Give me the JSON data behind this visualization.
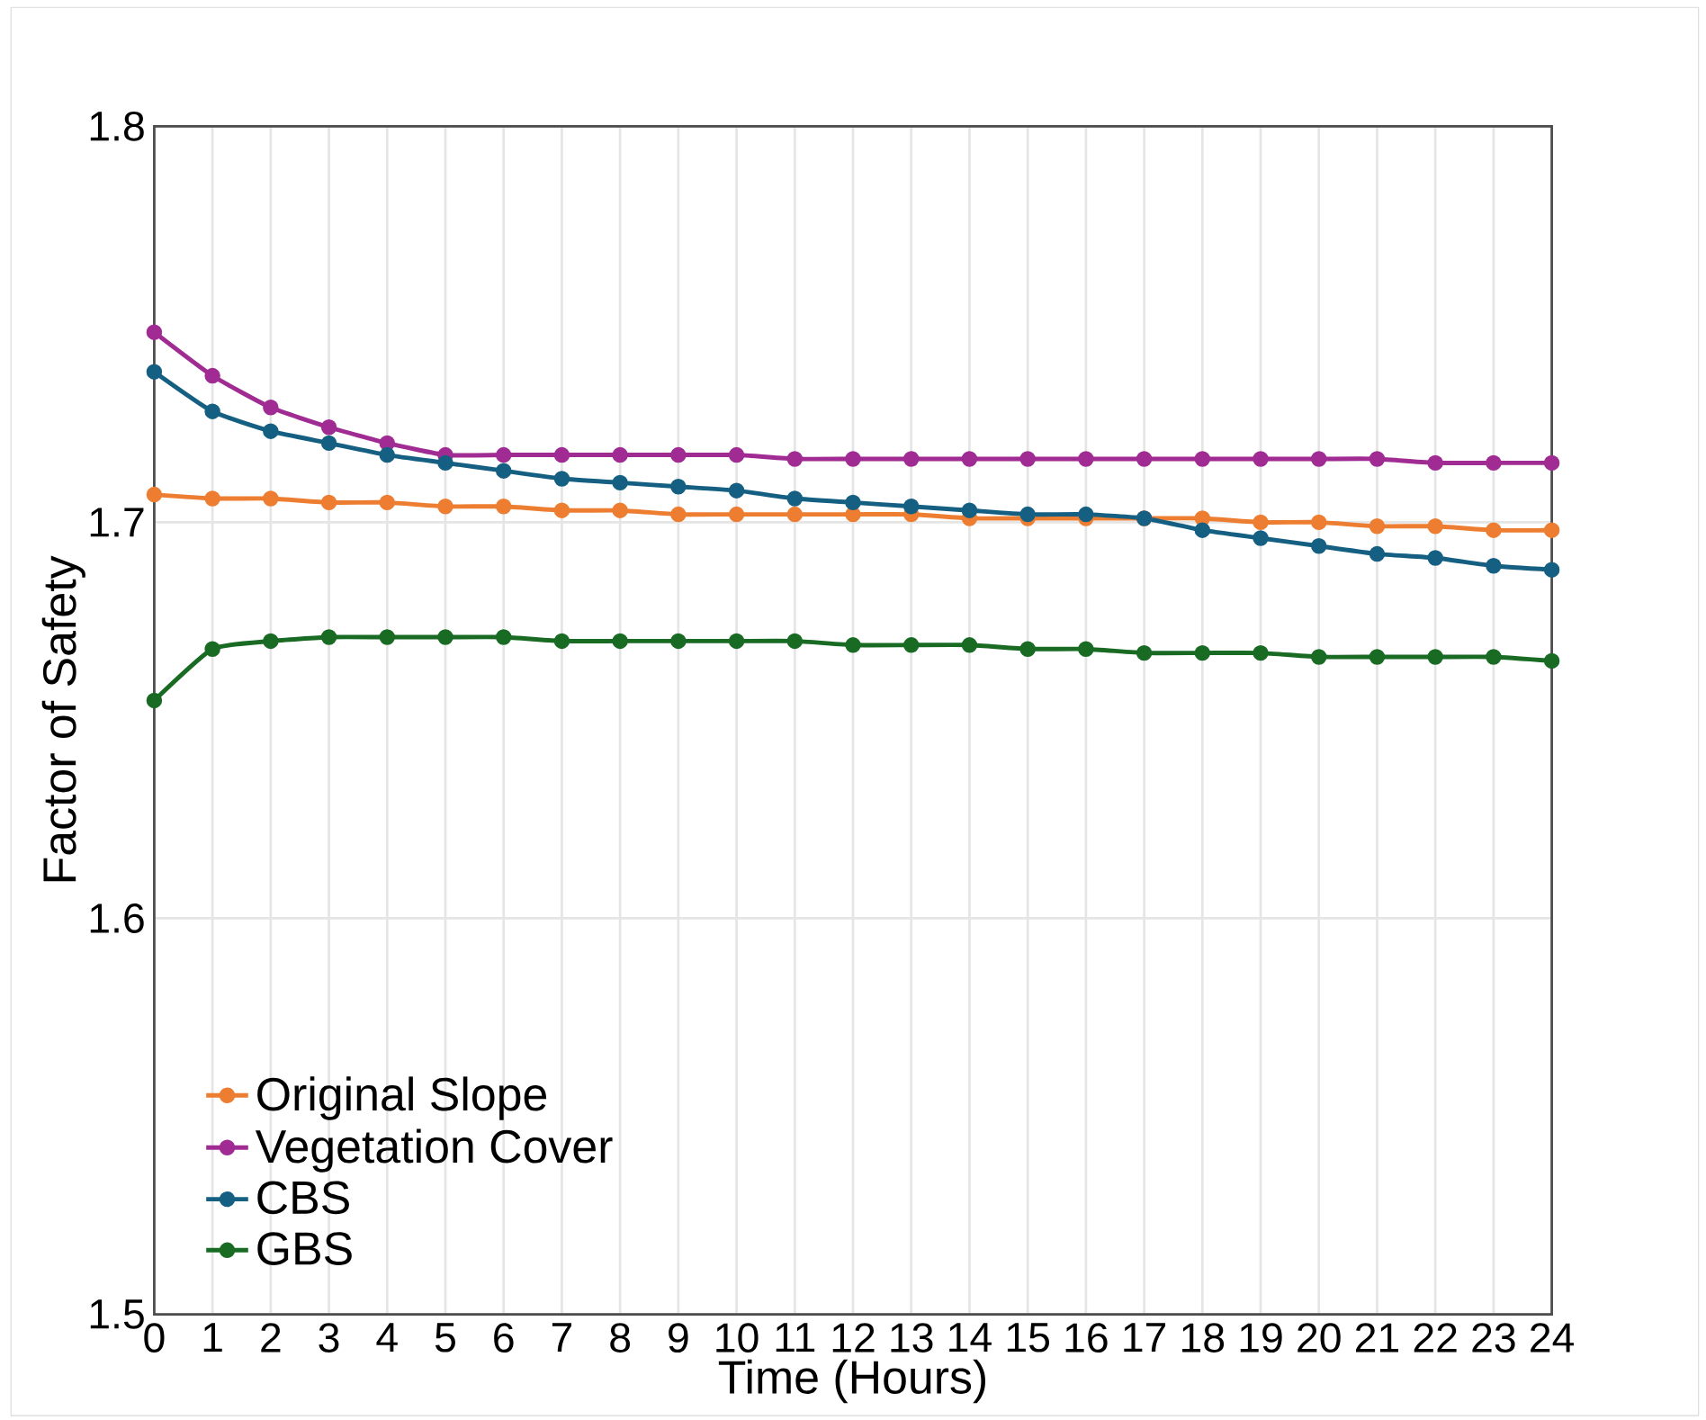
{
  "chart_data": {
    "type": "line",
    "xlabel": "Time (Hours)",
    "ylabel": "Factor of Safety",
    "x": [
      0,
      1,
      2,
      3,
      4,
      5,
      6,
      7,
      8,
      9,
      10,
      11,
      12,
      13,
      14,
      15,
      16,
      17,
      18,
      19,
      20,
      21,
      22,
      23,
      24
    ],
    "xlim": [
      0,
      24
    ],
    "xticks": [
      0,
      1,
      2,
      3,
      4,
      5,
      6,
      7,
      8,
      9,
      10,
      11,
      12,
      13,
      14,
      15,
      16,
      17,
      18,
      19,
      20,
      21,
      22,
      23,
      24
    ],
    "ylim": [
      1.5,
      1.8
    ],
    "yticks": [
      1.5,
      1.6,
      1.7,
      1.8
    ],
    "grid": true,
    "legend": "bottom left",
    "marker": "circle",
    "line_style": "solid",
    "series": [
      {
        "name": "Original Slope",
        "color": "#ed7d31",
        "values": [
          1.707,
          1.706,
          1.706,
          1.705,
          1.705,
          1.704,
          1.704,
          1.703,
          1.703,
          1.702,
          1.702,
          1.702,
          1.702,
          1.702,
          1.701,
          1.701,
          1.701,
          1.701,
          1.701,
          1.7,
          1.7,
          1.699,
          1.699,
          1.698,
          1.698
        ]
      },
      {
        "name": "Vegetation Cover",
        "color": "#a02b93",
        "values": [
          1.748,
          1.737,
          1.729,
          1.724,
          1.72,
          1.717,
          1.717,
          1.717,
          1.717,
          1.717,
          1.717,
          1.716,
          1.716,
          1.716,
          1.716,
          1.716,
          1.716,
          1.716,
          1.716,
          1.716,
          1.716,
          1.716,
          1.715,
          1.715,
          1.715
        ]
      },
      {
        "name": "CBS",
        "color": "#156082",
        "values": [
          1.738,
          1.728,
          1.723,
          1.72,
          1.717,
          1.715,
          1.713,
          1.711,
          1.71,
          1.709,
          1.708,
          1.706,
          1.705,
          1.704,
          1.703,
          1.702,
          1.702,
          1.701,
          1.698,
          1.696,
          1.694,
          1.692,
          1.691,
          1.689,
          1.688
        ]
      },
      {
        "name": "GBS",
        "color": "#196b24",
        "values": [
          1.655,
          1.668,
          1.67,
          1.671,
          1.671,
          1.671,
          1.671,
          1.67,
          1.67,
          1.67,
          1.67,
          1.67,
          1.669,
          1.669,
          1.669,
          1.668,
          1.668,
          1.667,
          1.667,
          1.667,
          1.666,
          1.666,
          1.666,
          1.666,
          1.665
        ]
      }
    ]
  }
}
